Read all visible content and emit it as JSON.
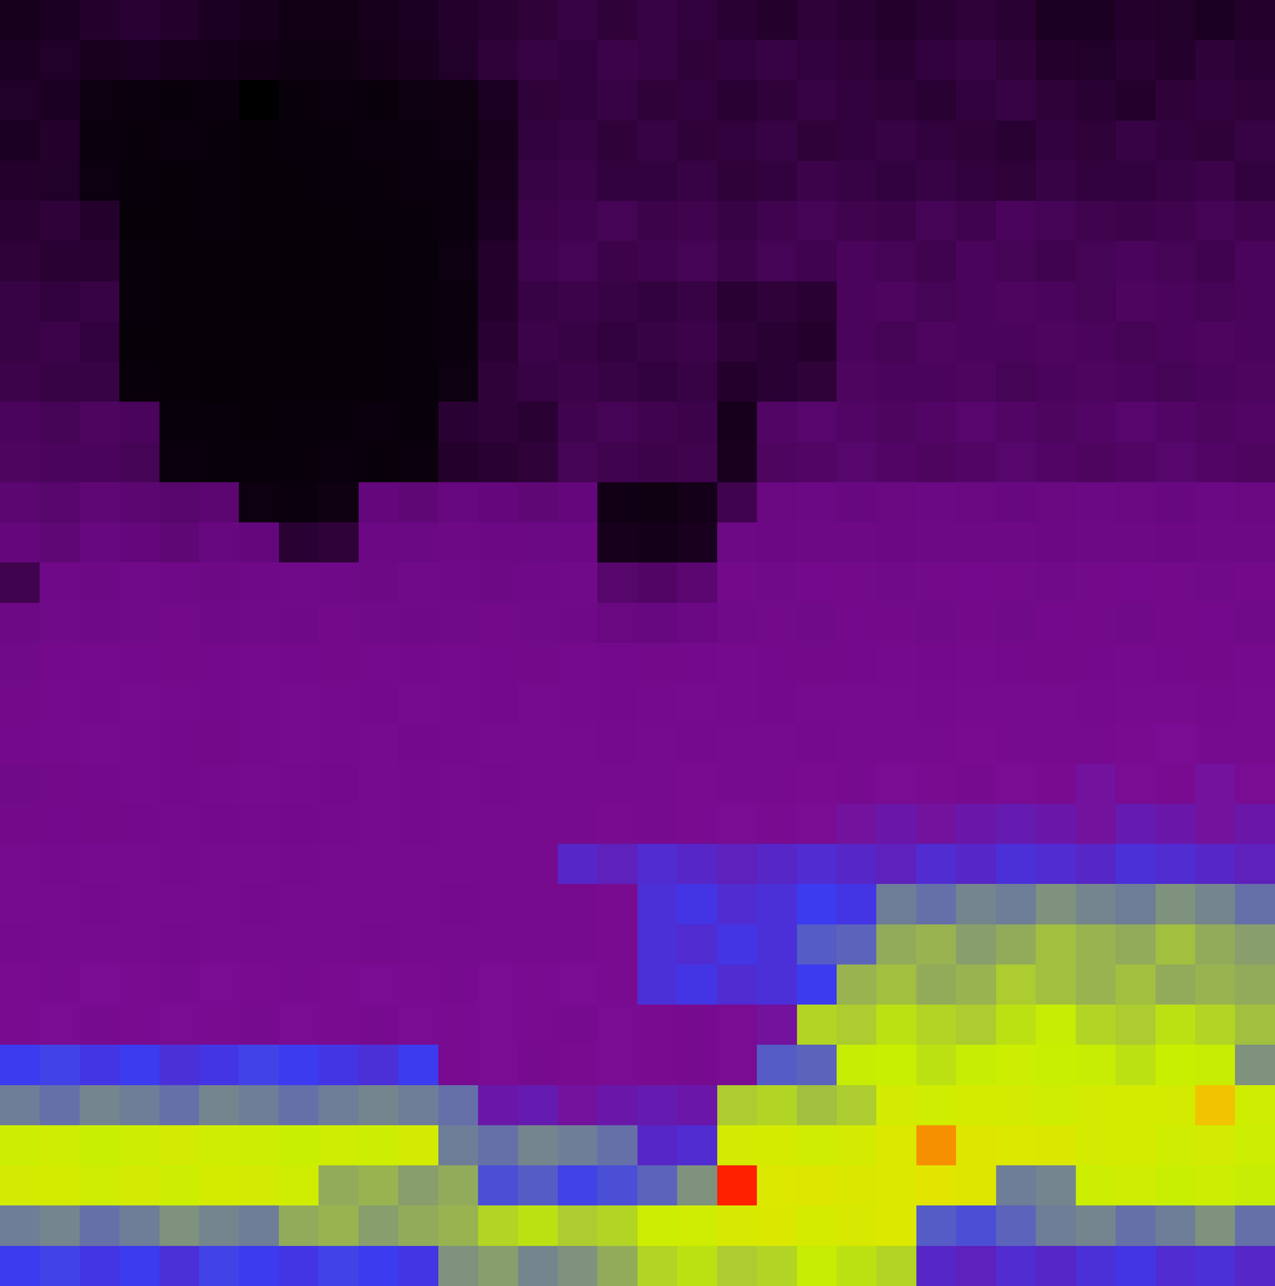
{
  "chart_data": {
    "type": "heatmap",
    "tick_labels": false,
    "cells": [
      [
        10,
        12,
        14,
        15,
        14,
        12,
        10,
        8,
        8,
        10,
        12,
        14,
        15,
        16,
        18,
        16,
        18,
        17,
        15,
        14,
        16,
        15,
        14,
        15,
        16,
        15,
        12,
        12,
        14,
        13,
        12,
        14
      ],
      [
        12,
        13,
        11,
        12,
        10,
        9,
        8,
        6,
        7,
        9,
        11,
        13,
        16,
        18,
        17,
        19,
        18,
        16,
        17,
        18,
        17,
        16,
        15,
        17,
        18,
        16,
        14,
        13,
        15,
        14,
        16,
        15
      ],
      [
        13,
        12,
        6,
        5,
        4,
        5,
        0,
        4,
        5,
        4,
        6,
        7,
        12,
        16,
        17,
        18,
        16,
        17,
        15,
        16,
        18,
        17,
        16,
        15,
        17,
        18,
        16,
        15,
        14,
        16,
        17,
        16
      ],
      [
        12,
        14,
        5,
        4,
        5,
        4,
        3,
        4,
        4,
        5,
        5,
        6,
        10,
        17,
        18,
        16,
        18,
        16,
        17,
        18,
        16,
        17,
        18,
        17,
        16,
        15,
        17,
        16,
        18,
        17,
        16,
        18
      ],
      [
        14,
        13,
        6,
        4,
        3,
        4,
        3,
        3,
        4,
        4,
        5,
        5,
        11,
        18,
        19,
        17,
        17,
        18,
        16,
        17,
        19,
        18,
        17,
        18,
        17,
        16,
        18,
        17,
        17,
        18,
        19,
        17
      ],
      [
        15,
        16,
        14,
        3,
        3,
        4,
        3,
        3,
        3,
        4,
        4,
        5,
        12,
        19,
        20,
        21,
        19,
        20,
        18,
        20,
        21,
        20,
        19,
        21,
        20,
        22,
        21,
        20,
        19,
        20,
        21,
        20
      ],
      [
        16,
        15,
        15,
        4,
        3,
        3,
        3,
        2,
        3,
        3,
        4,
        6,
        14,
        20,
        21,
        19,
        20,
        21,
        19,
        21,
        20,
        22,
        21,
        20,
        22,
        21,
        20,
        21,
        22,
        21,
        20,
        22
      ],
      [
        18,
        17,
        18,
        4,
        3,
        3,
        2,
        3,
        3,
        3,
        4,
        5,
        14,
        18,
        19,
        18,
        17,
        18,
        15,
        16,
        15,
        22,
        23,
        21,
        22,
        23,
        22,
        21,
        23,
        22,
        21,
        22
      ],
      [
        18,
        19,
        17,
        3,
        3,
        3,
        3,
        2,
        3,
        3,
        4,
        5,
        15,
        19,
        18,
        17,
        18,
        19,
        16,
        15,
        14,
        22,
        21,
        23,
        22,
        22,
        23,
        22,
        21,
        22,
        23,
        22
      ],
      [
        19,
        18,
        18,
        4,
        3,
        2,
        3,
        3,
        3,
        3,
        4,
        6,
        16,
        18,
        19,
        18,
        17,
        18,
        14,
        15,
        16,
        23,
        22,
        22,
        23,
        21,
        22,
        23,
        22,
        21,
        22,
        23
      ],
      [
        22,
        21,
        23,
        22,
        4,
        4,
        3,
        4,
        4,
        5,
        4,
        15,
        16,
        15,
        20,
        21,
        20,
        19,
        10,
        24,
        25,
        24,
        23,
        24,
        25,
        24,
        23,
        24,
        25,
        24,
        23,
        24
      ],
      [
        23,
        22,
        22,
        21,
        5,
        4,
        4,
        4,
        5,
        4,
        5,
        14,
        15,
        16,
        21,
        20,
        19,
        20,
        11,
        23,
        24,
        25,
        24,
        23,
        24,
        25,
        24,
        23,
        24,
        25,
        24,
        23
      ],
      [
        26,
        25,
        27,
        26,
        25,
        26,
        6,
        5,
        7,
        28,
        27,
        29,
        28,
        27,
        28,
        8,
        7,
        9,
        20,
        30,
        31,
        29,
        30,
        31,
        30,
        29,
        30,
        31,
        30,
        29,
        31,
        30
      ],
      [
        28,
        27,
        29,
        28,
        27,
        29,
        28,
        15,
        16,
        32,
        31,
        33,
        32,
        31,
        32,
        10,
        9,
        11,
        33,
        32,
        34,
        33,
        32,
        33,
        34,
        33,
        32,
        34,
        33,
        32,
        33,
        34
      ],
      [
        20,
        35,
        34,
        36,
        35,
        34,
        35,
        36,
        35,
        34,
        36,
        35,
        34,
        35,
        36,
        25,
        24,
        26,
        37,
        36,
        38,
        37,
        36,
        37,
        38,
        37,
        36,
        37,
        38,
        37,
        36,
        37
      ],
      [
        34,
        36,
        35,
        36,
        37,
        35,
        36,
        35,
        37,
        36,
        35,
        36,
        37,
        36,
        35,
        30,
        29,
        31,
        36,
        37,
        36,
        38,
        37,
        36,
        37,
        36,
        38,
        37,
        36,
        37,
        38,
        36
      ],
      [
        36,
        38,
        39,
        38,
        37,
        38,
        39,
        38,
        37,
        39,
        38,
        39,
        38,
        37,
        39,
        38,
        37,
        38,
        39,
        38,
        37,
        38,
        39,
        38,
        39,
        38,
        37,
        38,
        39,
        38,
        37,
        39
      ],
      [
        37,
        39,
        38,
        40,
        39,
        38,
        39,
        40,
        39,
        38,
        40,
        39,
        38,
        40,
        39,
        38,
        39,
        40,
        39,
        38,
        40,
        41,
        40,
        39,
        40,
        41,
        40,
        39,
        41,
        40,
        39,
        40
      ],
      [
        38,
        39,
        40,
        39,
        38,
        37,
        39,
        40,
        39,
        40,
        38,
        39,
        40,
        41,
        40,
        39,
        40,
        39,
        41,
        40,
        39,
        40,
        41,
        40,
        42,
        41,
        40,
        41,
        42,
        43,
        41,
        40
      ],
      [
        36,
        37,
        38,
        39,
        38,
        39,
        40,
        39,
        38,
        40,
        39,
        40,
        39,
        40,
        41,
        40,
        41,
        42,
        41,
        40,
        42,
        41,
        43,
        42,
        41,
        43,
        42,
        44,
        43,
        42,
        44,
        43
      ],
      [
        37,
        38,
        37,
        38,
        39,
        38,
        39,
        38,
        39,
        40,
        39,
        40,
        41,
        40,
        41,
        42,
        41,
        42,
        43,
        42,
        43,
        44,
        45,
        44,
        45,
        46,
        45,
        44,
        46,
        45,
        44,
        45
      ],
      [
        40,
        39,
        41,
        40,
        39,
        41,
        40,
        39,
        40,
        41,
        40,
        41,
        40,
        41,
        48,
        47,
        49,
        48,
        47,
        48,
        49,
        48,
        47,
        49,
        48,
        50,
        49,
        48,
        50,
        49,
        48,
        47
      ],
      [
        40,
        41,
        39,
        40,
        41,
        40,
        39,
        41,
        40,
        41,
        40,
        39,
        41,
        40,
        41,
        42,
        50,
        51,
        49,
        50,
        52,
        51,
        58,
        57,
        59,
        58,
        60,
        59,
        58,
        60,
        59,
        57
      ],
      [
        39,
        40,
        41,
        40,
        39,
        41,
        40,
        41,
        40,
        39,
        41,
        40,
        41,
        40,
        41,
        42,
        50,
        49,
        51,
        50,
        55,
        56,
        62,
        63,
        61,
        62,
        64,
        63,
        62,
        64,
        62,
        61
      ],
      [
        42,
        41,
        43,
        42,
        41,
        43,
        42,
        41,
        42,
        43,
        42,
        41,
        43,
        42,
        43,
        42,
        50,
        51,
        49,
        50,
        52,
        63,
        64,
        62,
        63,
        65,
        64,
        63,
        64,
        62,
        63,
        62
      ],
      [
        42,
        43,
        41,
        42,
        43,
        42,
        41,
        43,
        42,
        41,
        43,
        42,
        43,
        42,
        41,
        43,
        42,
        41,
        43,
        44,
        66,
        65,
        67,
        66,
        65,
        67,
        68,
        66,
        65,
        67,
        66,
        64
      ],
      [
        52,
        53,
        51,
        52,
        50,
        51,
        53,
        52,
        51,
        50,
        52,
        42,
        43,
        41,
        42,
        43,
        42,
        41,
        43,
        55,
        56,
        68,
        69,
        67,
        68,
        70,
        69,
        68,
        67,
        69,
        68,
        60
      ],
      [
        58,
        57,
        59,
        58,
        57,
        59,
        58,
        57,
        58,
        59,
        58,
        57,
        45,
        46,
        44,
        45,
        46,
        45,
        65,
        66,
        64,
        65,
        72,
        71,
        73,
        72,
        71,
        72,
        73,
        72,
        85,
        71
      ],
      [
        70,
        71,
        69,
        70,
        72,
        71,
        70,
        69,
        71,
        70,
        72,
        58,
        57,
        59,
        58,
        57,
        48,
        49,
        72,
        73,
        71,
        72,
        76,
        88,
        77,
        76,
        75,
        72,
        73,
        71,
        72,
        70
      ],
      [
        72,
        73,
        71,
        72,
        70,
        73,
        72,
        71,
        62,
        63,
        61,
        62,
        54,
        55,
        53,
        54,
        56,
        60,
        95,
        76,
        77,
        75,
        76,
        78,
        77,
        58,
        59,
        70,
        71,
        69,
        70,
        68
      ],
      [
        58,
        59,
        57,
        58,
        60,
        59,
        58,
        62,
        63,
        61,
        62,
        63,
        66,
        67,
        65,
        66,
        70,
        71,
        74,
        75,
        73,
        74,
        76,
        55,
        54,
        56,
        58,
        59,
        57,
        58,
        60,
        57
      ],
      [
        52,
        53,
        51,
        52,
        50,
        53,
        52,
        51,
        53,
        52,
        51,
        60,
        61,
        59,
        60,
        62,
        66,
        67,
        65,
        66,
        68,
        67,
        66,
        48,
        47,
        49,
        48,
        50,
        51,
        49,
        50,
        48
      ]
    ]
  }
}
